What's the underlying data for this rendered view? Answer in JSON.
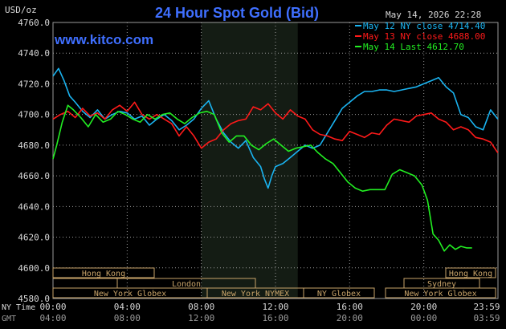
{
  "header": {
    "title": "24 Hour Spot Gold (Bid)",
    "units": "USD/oz",
    "timestamp": "May 14, 2026 22:28",
    "watermark": "www.kitco.com"
  },
  "colors": {
    "background": "#000000",
    "plot_background": "#000000",
    "title": "#3f6fff",
    "watermark": "#3f6fff",
    "grid": "#9a9a9a",
    "ny_shade": "#141c14",
    "session_box": "#c9a46a",
    "axis_text": "#d8d8d8"
  },
  "legend": [
    {
      "text": "May 12 NY close 4714.40",
      "color": "#1ab3f0"
    },
    {
      "text": "May 13 NY close 4688.00",
      "color": "#ff1a1a"
    },
    {
      "text": "May 14 Last 4612.70",
      "color": "#22ee22"
    }
  ],
  "axes": {
    "ny_time_label": "NY Time",
    "gmt_label": "GMT",
    "ny_time_ticks": [
      "00:00",
      "04:00",
      "08:00",
      "12:00",
      "16:00",
      "20:00",
      "23:59"
    ],
    "gmt_ticks": [
      "04:00",
      "08:00",
      "12:00",
      "16:00",
      "20:00",
      "00:00",
      "03:59"
    ]
  },
  "sessions": [
    {
      "name": "Hong Kong"
    },
    {
      "name": "London"
    },
    {
      "name": "New York Globex"
    },
    {
      "name": "New York NYMEX"
    },
    {
      "name": "NY Globex"
    },
    {
      "name": "Sydney"
    },
    {
      "name": "Hong Kong"
    },
    {
      "name": "New York Globex"
    }
  ],
  "chart_data": {
    "type": "line",
    "title": "24 Hour Spot Gold (Bid)",
    "ylabel": "USD/oz",
    "xlabel": "NY Time",
    "ylim": [
      4580,
      4760
    ],
    "xlim": [
      0,
      24
    ],
    "yticks": [
      4580,
      4600,
      4620,
      4640,
      4660,
      4680,
      4700,
      4720,
      4740,
      4760
    ],
    "ytick_labels": [
      "4580.0",
      "4600.0",
      "4620.0",
      "4640.0",
      "4660.0",
      "4680.0",
      "4700.0",
      "4720.0",
      "4740.0",
      "4760.0"
    ],
    "grid": true,
    "legend_position": "top-right",
    "series": [
      {
        "name": "May 12 NY close 4714.40",
        "color": "#1ab3f0",
        "x": [
          0,
          0.3,
          0.6,
          0.9,
          1.2,
          1.6,
          2.0,
          2.4,
          2.8,
          3.2,
          3.6,
          4.0,
          4.4,
          4.8,
          5.2,
          5.6,
          6.0,
          6.4,
          6.8,
          7.2,
          7.6,
          8.0,
          8.4,
          8.8,
          9.2,
          9.6,
          10.0,
          10.4,
          10.8,
          11.2,
          11.4,
          11.6,
          11.8,
          12.0,
          12.4,
          12.8,
          13.2,
          13.6,
          14.0,
          14.4,
          14.8,
          15.2,
          15.6,
          16.0,
          16.4,
          16.8,
          17.2,
          17.6,
          18.0,
          18.4,
          18.8,
          19.2,
          19.6,
          20.0,
          20.4,
          20.8,
          21.2,
          21.6,
          22.0,
          22.4,
          22.8,
          23.2,
          23.6,
          23.99
        ],
        "values": [
          4725,
          4730,
          4722,
          4712,
          4708,
          4702,
          4698,
          4703,
          4697,
          4700,
          4702,
          4701,
          4697,
          4699,
          4693,
          4697,
          4700,
          4696,
          4690,
          4693,
          4697,
          4704,
          4709,
          4697,
          4688,
          4682,
          4678,
          4683,
          4672,
          4666,
          4658,
          4652,
          4660,
          4666,
          4668,
          4672,
          4676,
          4680,
          4678,
          4680,
          4688,
          4696,
          4704,
          4708,
          4712,
          4715,
          4715,
          4716,
          4716,
          4715,
          4716,
          4717,
          4718,
          4720,
          4722,
          4724,
          4718,
          4714,
          4700,
          4698,
          4692,
          4690,
          4703,
          4697
        ]
      },
      {
        "name": "May 13 NY close 4688.00",
        "color": "#ff1a1a",
        "x": [
          0,
          0.4,
          0.8,
          1.2,
          1.6,
          2.0,
          2.4,
          2.8,
          3.2,
          3.6,
          4.0,
          4.4,
          4.8,
          5.2,
          5.6,
          6.0,
          6.4,
          6.8,
          7.2,
          7.6,
          8.0,
          8.4,
          8.8,
          9.2,
          9.6,
          10.0,
          10.4,
          10.8,
          11.2,
          11.6,
          12.0,
          12.4,
          12.8,
          13.2,
          13.6,
          14.0,
          14.4,
          14.8,
          15.2,
          15.6,
          16.0,
          16.4,
          16.8,
          17.2,
          17.6,
          18.0,
          18.4,
          18.8,
          19.2,
          19.6,
          20.0,
          20.4,
          20.8,
          21.2,
          21.6,
          22.0,
          22.4,
          22.8,
          23.2,
          23.6,
          23.99
        ],
        "values": [
          4697,
          4700,
          4702,
          4698,
          4704,
          4699,
          4701,
          4697,
          4703,
          4706,
          4702,
          4708,
          4700,
          4697,
          4700,
          4697,
          4694,
          4686,
          4692,
          4686,
          4678,
          4682,
          4684,
          4690,
          4694,
          4696,
          4697,
          4705,
          4703,
          4707,
          4701,
          4697,
          4703,
          4699,
          4697,
          4690,
          4687,
          4686,
          4684,
          4683,
          4689,
          4687,
          4685,
          4688,
          4687,
          4693,
          4697,
          4696,
          4695,
          4699,
          4700,
          4701,
          4697,
          4695,
          4690,
          4692,
          4690,
          4685,
          4684,
          4682,
          4675
        ]
      },
      {
        "name": "May 14 Last 4612.70",
        "color": "#22ee22",
        "x": [
          0,
          0.2,
          0.5,
          0.8,
          1.1,
          1.5,
          1.9,
          2.3,
          2.7,
          3.1,
          3.5,
          3.9,
          4.3,
          4.7,
          5.1,
          5.5,
          5.9,
          6.3,
          6.7,
          7.1,
          7.5,
          7.9,
          8.3,
          8.7,
          9.1,
          9.5,
          9.9,
          10.3,
          10.7,
          11.1,
          11.5,
          11.9,
          12.3,
          12.7,
          13.1,
          13.5,
          13.9,
          14.3,
          14.7,
          15.1,
          15.5,
          15.9,
          16.3,
          16.7,
          17.1,
          17.5,
          17.9,
          18.3,
          18.7,
          19.1,
          19.5,
          19.9,
          20.2,
          20.5,
          20.8,
          21.1,
          21.4,
          21.7,
          22.0,
          22.3,
          22.6
        ],
        "values": [
          4671,
          4680,
          4695,
          4706,
          4703,
          4698,
          4692,
          4700,
          4695,
          4697,
          4702,
          4700,
          4697,
          4695,
          4700,
          4697,
          4700,
          4701,
          4697,
          4694,
          4698,
          4701,
          4702,
          4700,
          4688,
          4682,
          4686,
          4686,
          4680,
          4677,
          4681,
          4684,
          4680,
          4676,
          4678,
          4679,
          4680,
          4675,
          4671,
          4668,
          4662,
          4656,
          4652,
          4650,
          4651,
          4651,
          4651,
          4661,
          4664,
          4662,
          4660,
          4654,
          4644,
          4622,
          4618,
          4611,
          4615,
          4612,
          4614,
          4613,
          4613
        ]
      }
    ]
  }
}
